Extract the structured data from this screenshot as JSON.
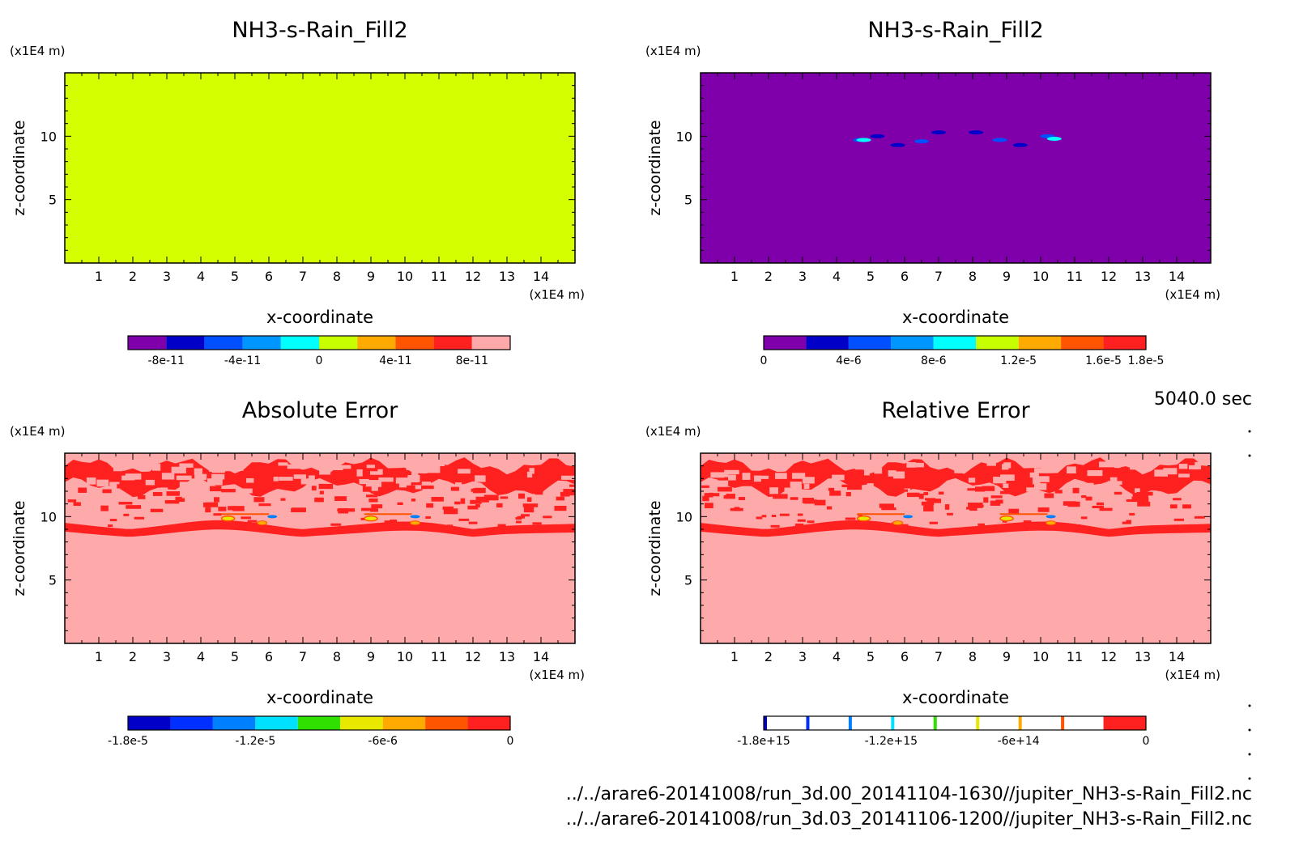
{
  "time_label": "5040.0 sec",
  "file_paths": [
    "../../arare6-20141008/run_3d.00_20141104-1630//jupiter_NH3-s-Rain_Fill2.nc",
    "../../arare6-20141008/run_3d.03_20141106-1200//jupiter_NH3-s-Rain_Fill2.nc"
  ],
  "chart_data": [
    {
      "type": "heatmap",
      "title": "NH3-s-Rain_Fill2",
      "xlabel": "x-coordinate",
      "ylabel": "z-coordinate",
      "x_unit": "(x1E4 m)",
      "y_unit": "(x1E4 m)",
      "xlim": [
        0,
        15
      ],
      "ylim": [
        0,
        15
      ],
      "xticks": [
        1,
        2,
        3,
        4,
        5,
        6,
        7,
        8,
        9,
        10,
        11,
        12,
        13,
        14
      ],
      "yticks": [
        5,
        10
      ],
      "field": "uniform",
      "field_color": "#d4ff00",
      "colorbar": {
        "colors": [
          "#7f00aa",
          "#0000c8",
          "#0050ff",
          "#0096ff",
          "#00ffff",
          "#c8ff00",
          "#ffaa00",
          "#ff5500",
          "#ff2020",
          "#ffaaaa"
        ],
        "labels": [
          "-8e-11",
          "-4e-11",
          "0",
          "4e-11",
          "8e-11"
        ],
        "label_positions": [
          1,
          3,
          5,
          7,
          9
        ],
        "outlined": false
      }
    },
    {
      "type": "heatmap",
      "title": "NH3-s-Rain_Fill2",
      "xlabel": "x-coordinate",
      "ylabel": "z-coordinate",
      "x_unit": "(x1E4 m)",
      "y_unit": "(x1E4 m)",
      "xlim": [
        0,
        15
      ],
      "ylim": [
        0,
        15
      ],
      "xticks": [
        1,
        2,
        3,
        4,
        5,
        6,
        7,
        8,
        9,
        10,
        11,
        12,
        13,
        14
      ],
      "yticks": [
        5,
        10
      ],
      "field": "background_with_small_patches",
      "field_color": "#7f00aa",
      "patches": [
        {
          "x": 4.7,
          "z": 9.7,
          "color": "#0050ff"
        },
        {
          "x": 5.2,
          "z": 10.0,
          "color": "#0000c8"
        },
        {
          "x": 5.8,
          "z": 9.3,
          "color": "#0000c8"
        },
        {
          "x": 6.5,
          "z": 9.6,
          "color": "#0050ff"
        },
        {
          "x": 7.0,
          "z": 10.3,
          "color": "#0000c8"
        },
        {
          "x": 8.1,
          "z": 10.3,
          "color": "#0000c8"
        },
        {
          "x": 8.8,
          "z": 9.7,
          "color": "#0050ff"
        },
        {
          "x": 9.4,
          "z": 9.3,
          "color": "#0000c8"
        },
        {
          "x": 10.2,
          "z": 10.0,
          "color": "#0050ff"
        },
        {
          "x": 10.4,
          "z": 9.8,
          "color": "#00ffff"
        },
        {
          "x": 4.8,
          "z": 9.7,
          "color": "#00ffff"
        }
      ],
      "colorbar": {
        "colors": [
          "#7f00aa",
          "#0000c8",
          "#0050ff",
          "#0096ff",
          "#00ffff",
          "#c8ff00",
          "#ffaa00",
          "#ff5500",
          "#ff2020"
        ],
        "labels": [
          "0",
          "4e-6",
          "8e-6",
          "1.2e-5",
          "1.6e-5",
          "1.8e-5"
        ],
        "label_positions": [
          0,
          2,
          4,
          6,
          8,
          9
        ],
        "outlined": false
      }
    },
    {
      "type": "heatmap",
      "title": "Absolute Error",
      "xlabel": "x-coordinate",
      "ylabel": "z-coordinate",
      "x_unit": "(x1E4 m)",
      "y_unit": "(x1E4 m)",
      "xlim": [
        0,
        15
      ],
      "ylim": [
        0,
        15
      ],
      "xticks": [
        1,
        2,
        3,
        4,
        5,
        6,
        7,
        8,
        9,
        10,
        11,
        12,
        13,
        14
      ],
      "yticks": [
        5,
        10
      ],
      "field": "error_bands",
      "field_color": "#ffaaaa",
      "band_color": "#ff2020",
      "colorbar": {
        "colors": [
          "#0000c8",
          "#0030ff",
          "#0080ff",
          "#00e0ff",
          "#30e000",
          "#e8e800",
          "#ffaa00",
          "#ff5500",
          "#ff2020"
        ],
        "labels": [
          "-1.8e-5",
          "-1.2e-5",
          "-6e-6",
          "0"
        ],
        "label_positions": [
          0,
          3,
          6,
          9
        ],
        "outlined": false
      }
    },
    {
      "type": "heatmap",
      "title": "Relative Error",
      "xlabel": "x-coordinate",
      "ylabel": "z-coordinate",
      "x_unit": "(x1E4 m)",
      "y_unit": "(x1E4 m)",
      "xlim": [
        0,
        15
      ],
      "ylim": [
        0,
        15
      ],
      "xticks": [
        1,
        2,
        3,
        4,
        5,
        6,
        7,
        8,
        9,
        10,
        11,
        12,
        13,
        14
      ],
      "yticks": [
        5,
        10
      ],
      "field": "error_bands",
      "field_color": "#ffaaaa",
      "band_color": "#ff2020",
      "colorbar": {
        "colors": [
          "#0000c8",
          "#0030ff",
          "#0080ff",
          "#00e0ff",
          "#30e000",
          "#e8e800",
          "#ffaa00",
          "#ff5500",
          "#ff2020"
        ],
        "labels": [
          "-1.8e+15",
          "-1.2e+15",
          "-6e+14",
          "0"
        ],
        "label_positions": [
          0,
          3,
          6,
          9
        ],
        "outlined": true
      }
    }
  ]
}
